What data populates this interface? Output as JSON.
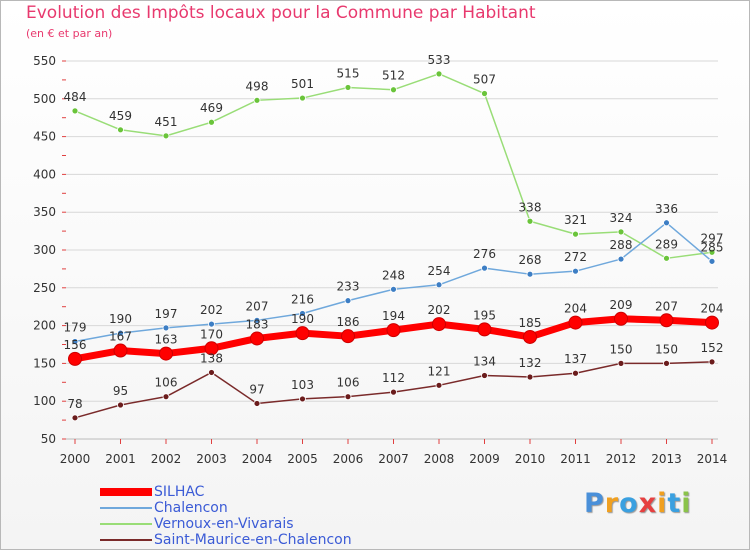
{
  "title": "Evolution des Impôts locaux pour la Commune par Habitant",
  "subtitle": "(en € et par an)",
  "logo_text": "Proxiti",
  "chart_data": {
    "type": "line",
    "title": "Evolution des Impôts locaux pour la Commune par Habitant",
    "ylabel": "(en € et par an)",
    "xlabel": "",
    "ylim": [
      50,
      550
    ],
    "yticks": [
      50,
      100,
      150,
      200,
      250,
      300,
      350,
      400,
      450,
      500,
      550
    ],
    "categories": [
      "2000",
      "2001",
      "2002",
      "2003",
      "2004",
      "2005",
      "2006",
      "2007",
      "2008",
      "2009",
      "2010",
      "2011",
      "2012",
      "2013",
      "2014"
    ],
    "series": [
      {
        "name": "SILHAC",
        "color": "#ff0000",
        "dot": "#cc0000",
        "values": [
          156,
          167,
          163,
          170,
          183,
          190,
          186,
          194,
          202,
          195,
          185,
          204,
          209,
          207,
          204
        ]
      },
      {
        "name": "Chalencon",
        "color": "#6fa8dc",
        "dot": "#3d7ec4",
        "values": [
          179,
          190,
          197,
          202,
          207,
          216,
          233,
          248,
          254,
          276,
          268,
          272,
          288,
          336,
          285
        ]
      },
      {
        "name": "Vernoux-en-Vivarais",
        "color": "#99dd77",
        "dot": "#6ac43a",
        "values": [
          484,
          459,
          451,
          469,
          498,
          501,
          515,
          512,
          533,
          507,
          338,
          321,
          324,
          289,
          297
        ]
      },
      {
        "name": "Saint-Maurice-en-Chalencon",
        "color": "#7a2a2a",
        "dot": "#6b1c1c",
        "values": [
          78,
          95,
          106,
          138,
          97,
          103,
          106,
          112,
          121,
          134,
          132,
          137,
          150,
          150,
          152
        ]
      }
    ]
  }
}
